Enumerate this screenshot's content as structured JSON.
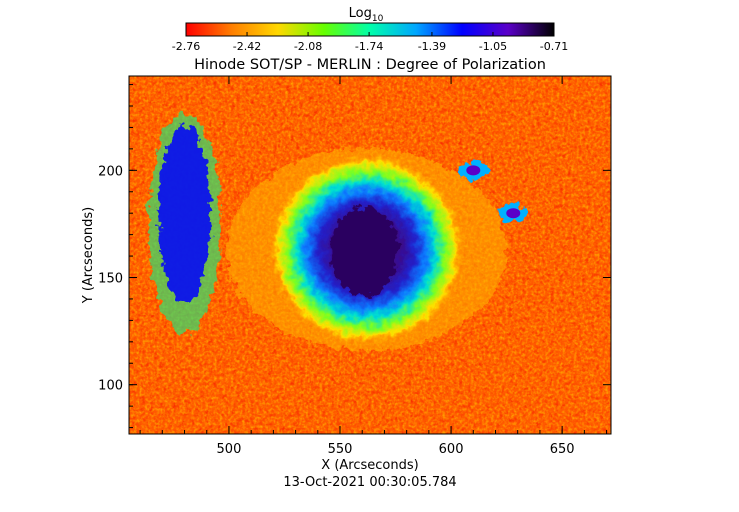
{
  "colorbar": {
    "label_main": "Log",
    "label_sub": "10",
    "ticks": [
      "-2.76",
      "-2.42",
      "-2.08",
      "-1.74",
      "-1.39",
      "-1.05",
      "-0.71"
    ],
    "range": [
      -2.76,
      -0.71
    ],
    "colors": [
      "#ff0000",
      "#ff7f00",
      "#ffd800",
      "#66ff00",
      "#00ffaa",
      "#00a6ff",
      "#0000ff",
      "#5a00c8",
      "#000000"
    ]
  },
  "chart_data": {
    "type": "heatmap",
    "title": "Hinode SOT/SP - MERLIN : Degree of Polarization",
    "xlabel": "X (Arcseconds)",
    "ylabel": "Y (Arcseconds)",
    "xlim": [
      455,
      672
    ],
    "ylim": [
      77,
      244
    ],
    "x_ticks": [
      500,
      550,
      600,
      650
    ],
    "y_ticks": [
      100,
      150,
      200
    ],
    "value_scale": "log10",
    "value_range": [
      -2.76,
      -0.71
    ],
    "features": [
      {
        "type": "sunspot",
        "x": 562,
        "y": 163,
        "umbra_radius": 16,
        "penumbra_radius": 28,
        "value_umbra": -0.75,
        "value_penumbra": -1.5
      },
      {
        "type": "plage",
        "x": 480,
        "y": 175,
        "value": -1.35
      },
      {
        "type": "pore",
        "x": 628,
        "y": 180,
        "value": -0.9
      },
      {
        "type": "pore",
        "x": 610,
        "y": 200,
        "value": -0.95
      },
      {
        "type": "quiet_sun_background",
        "value": -2.55
      }
    ]
  },
  "footer": {
    "timestamp": "13-Oct-2021 00:30:05.784"
  }
}
